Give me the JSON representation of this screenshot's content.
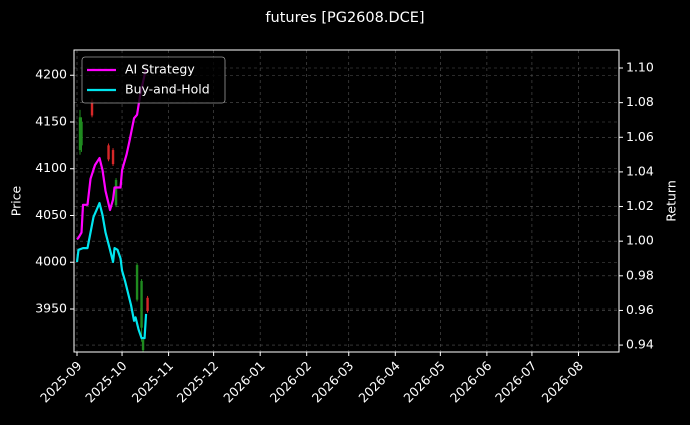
{
  "chart_data": {
    "type": "line",
    "title": "futures [PG2608.DCE]",
    "y_label": "Price",
    "y2_label": "Return",
    "xlim": [
      -2,
      361
    ],
    "xticks": [
      {
        "value": 0,
        "label": "2025-09"
      },
      {
        "value": 30,
        "label": "2025-10"
      },
      {
        "value": 61,
        "label": "2025-11"
      },
      {
        "value": 91,
        "label": "2025-12"
      },
      {
        "value": 122,
        "label": "2026-01"
      },
      {
        "value": 153,
        "label": "2026-02"
      },
      {
        "value": 181,
        "label": "2026-03"
      },
      {
        "value": 212,
        "label": "2026-04"
      },
      {
        "value": 242,
        "label": "2026-05"
      },
      {
        "value": 273,
        "label": "2026-06"
      },
      {
        "value": 303,
        "label": "2026-07"
      },
      {
        "value": 334,
        "label": "2026-08"
      }
    ],
    "ylim": [
      3904,
      4227
    ],
    "yticks": [
      3950,
      4000,
      4050,
      4100,
      4150,
      4200
    ],
    "y2lim": [
      0.936,
      1.1104
    ],
    "y2ticks": [
      0.94,
      0.96,
      0.98,
      {
        "value": 1,
        "label": "1.00"
      },
      1.02,
      1.04,
      1.06,
      1.08,
      {
        "value": 1.1,
        "label": "1.10"
      }
    ],
    "grid": true,
    "legend": "upper left",
    "candles": {
      "up_color": "#1f8b1f",
      "down_color": "#d62728",
      "x": [
        2,
        3,
        10,
        21,
        24,
        26,
        40,
        43,
        44,
        47
      ],
      "open": [
        4120,
        4125,
        4173,
        4125,
        4120,
        4061,
        3960,
        3930,
        3906,
        3962
      ],
      "high": [
        4163,
        4155,
        4175,
        4127,
        4122,
        4090,
        3999,
        3982,
        3918,
        3964
      ],
      "low": [
        4115,
        4118,
        4155,
        4108,
        4103,
        4059,
        3958,
        3915,
        3904,
        3946
      ],
      "close": [
        4155,
        4150,
        4157,
        4110,
        4105,
        4088,
        3997,
        3980,
        3917,
        3948
      ]
    },
    "series": [
      {
        "name": "AI Strategy",
        "color": "#ff00ff",
        "axis": "y2",
        "x": [
          0,
          1,
          3,
          4,
          7,
          9,
          12,
          15,
          17,
          19,
          22,
          24,
          25,
          29,
          30,
          33,
          35,
          38,
          40,
          42,
          45,
          46
        ],
        "values": [
          1.001,
          1.002,
          1.005,
          1.021,
          1.021,
          1.036,
          1.044,
          1.048,
          1.041,
          1.029,
          1.018,
          1.024,
          1.031,
          1.031,
          1.041,
          1.05,
          1.058,
          1.071,
          1.073,
          1.084,
          1.096,
          1.099
        ]
      },
      {
        "name": "Buy-and-Hold",
        "color": "#00e5ee",
        "axis": "y2",
        "x": [
          0,
          1,
          4,
          7,
          9,
          11,
          13,
          15,
          17,
          19,
          22,
          24,
          25,
          27,
          29,
          30,
          32,
          34,
          36,
          38,
          39,
          41,
          43,
          45,
          46
        ],
        "values": [
          0.988,
          0.995,
          0.996,
          0.996,
          1.005,
          1.014,
          1.018,
          1.022,
          1.015,
          1.005,
          0.995,
          0.988,
          0.996,
          0.995,
          0.99,
          0.983,
          0.977,
          0.97,
          0.963,
          0.954,
          0.956,
          0.949,
          0.944,
          0.944,
          0.958
        ]
      }
    ]
  }
}
